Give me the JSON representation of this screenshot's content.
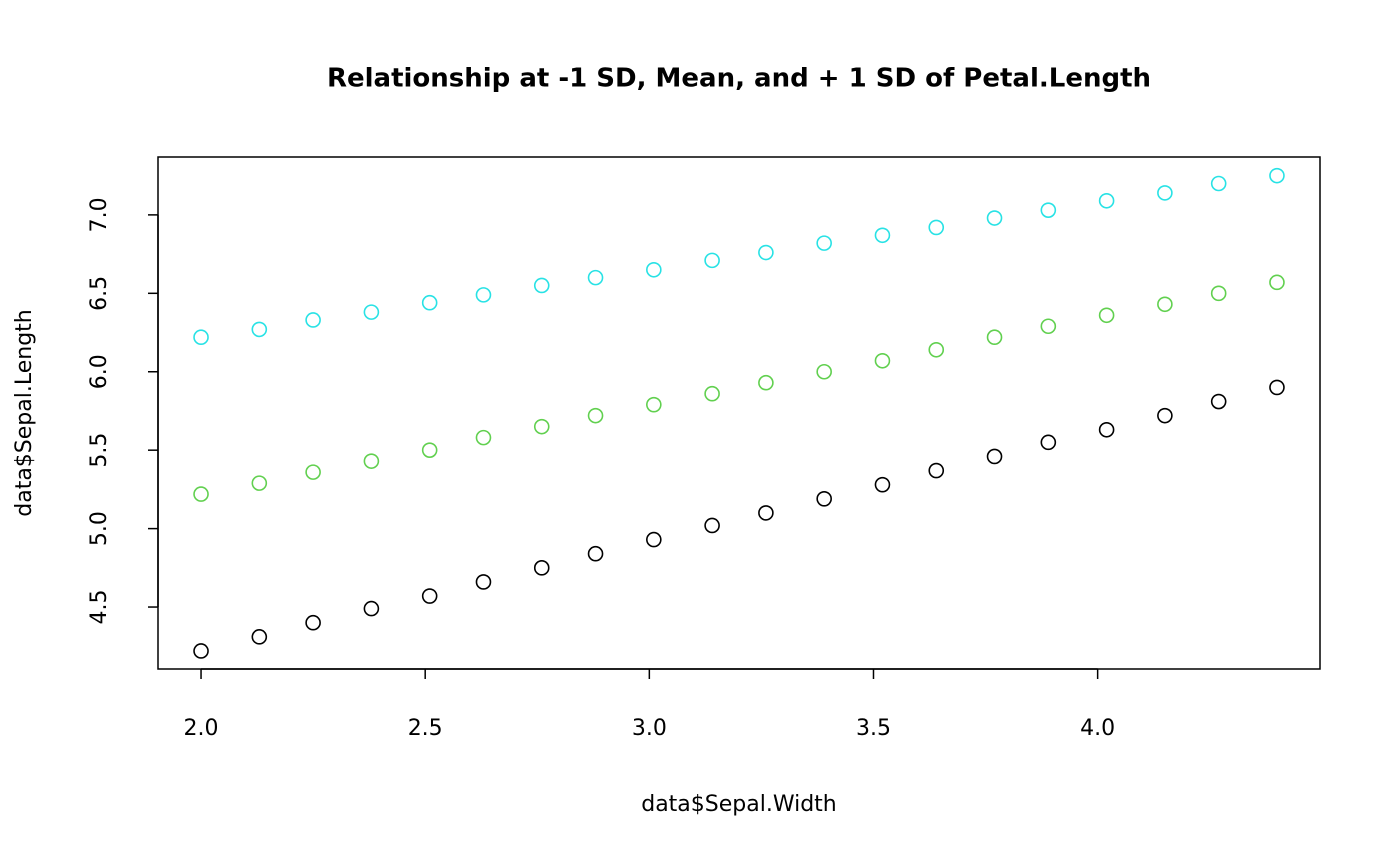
{
  "chart_data": {
    "type": "scatter",
    "title": "Relationship at -1 SD, Mean, and + 1 SD of Petal.Length",
    "x_label": "data$Sepal.Width",
    "y_label": "data$Sepal.Length",
    "x": [
      2.0,
      2.13,
      2.25,
      2.38,
      2.51,
      2.63,
      2.76,
      2.88,
      3.01,
      3.14,
      3.26,
      3.39,
      3.52,
      3.64,
      3.77,
      3.89,
      4.02,
      4.15,
      4.27,
      4.4
    ],
    "series": [
      {
        "color": "#000000",
        "values": [
          4.22,
          4.31,
          4.4,
          4.49,
          4.57,
          4.66,
          4.75,
          4.84,
          4.93,
          5.02,
          5.1,
          5.19,
          5.28,
          5.37,
          5.46,
          5.55,
          5.63,
          5.72,
          5.81,
          5.9
        ]
      },
      {
        "color": "#61D04F",
        "values": [
          5.22,
          5.29,
          5.36,
          5.43,
          5.5,
          5.58,
          5.65,
          5.72,
          5.79,
          5.86,
          5.93,
          6.0,
          6.07,
          6.14,
          6.22,
          6.29,
          6.36,
          6.43,
          6.5,
          6.57
        ]
      },
      {
        "color": "#28E2E5",
        "values": [
          6.22,
          6.27,
          6.33,
          6.38,
          6.44,
          6.49,
          6.55,
          6.6,
          6.65,
          6.71,
          6.76,
          6.82,
          6.87,
          6.92,
          6.98,
          7.03,
          7.09,
          7.14,
          7.2,
          7.25
        ]
      }
    ],
    "xlim": [
      1.904,
      4.496
    ],
    "ylim": [
      4.105,
      7.369
    ],
    "xticks": [
      {
        "value": 2,
        "label": "2.0"
      },
      2.5,
      {
        "value": 3,
        "label": "3.0"
      },
      3.5,
      {
        "value": 4,
        "label": "4.0"
      }
    ],
    "yticks": [
      4.5,
      {
        "value": 5,
        "label": "5.0"
      },
      5.5,
      {
        "value": 6,
        "label": "6.0"
      },
      6.5,
      {
        "value": 7,
        "label": "7.0"
      }
    ],
    "grid": false
  }
}
